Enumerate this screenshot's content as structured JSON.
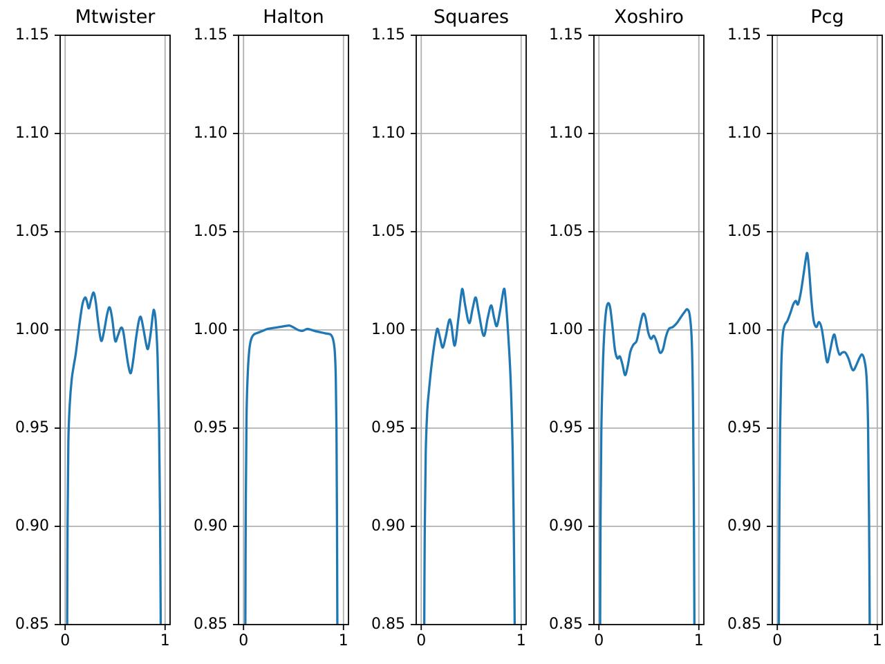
{
  "figure": {
    "background": "#ffffff",
    "line_color": "#1f77b4",
    "grid_color": "#b0b0b0",
    "spine_color": "#000000",
    "tick_color": "#000000",
    "text_color": "#000000"
  },
  "chart_data": [
    {
      "type": "line",
      "title": "Mtwister",
      "xlabel": "",
      "ylabel": "",
      "xlim": [
        -0.05,
        1.05
      ],
      "ylim": [
        0.85,
        1.15
      ],
      "grid": true,
      "legend": false,
      "xticks": {
        "values": [
          0,
          1
        ],
        "labels": [
          "0",
          "1"
        ]
      },
      "yticks": {
        "values": [
          0.85,
          0.9,
          0.95,
          1.0,
          1.05,
          1.1,
          1.15
        ],
        "labels": [
          "0.85",
          "0.90",
          "0.95",
          "1.00",
          "1.05",
          "1.10",
          "1.15"
        ]
      },
      "series": [
        {
          "color": "#1f77b4",
          "points": [
            [
              0.02,
              0.845
            ],
            [
              0.024,
              0.9
            ],
            [
              0.032,
              0.943
            ],
            [
              0.046,
              0.962
            ],
            [
              0.065,
              0.9745
            ],
            [
              0.085,
              0.9815
            ],
            [
              0.105,
              0.9875
            ],
            [
              0.125,
              0.9955
            ],
            [
              0.15,
              1.0055
            ],
            [
              0.175,
              1.0135
            ],
            [
              0.2,
              1.0165
            ],
            [
              0.218,
              1.0145
            ],
            [
              0.237,
              1.011
            ],
            [
              0.26,
              1.0155
            ],
            [
              0.285,
              1.019
            ],
            [
              0.307,
              1.014
            ],
            [
              0.33,
              1.004
            ],
            [
              0.36,
              0.9945
            ],
            [
              0.388,
              0.999
            ],
            [
              0.42,
              1.008
            ],
            [
              0.445,
              1.0115
            ],
            [
              0.47,
              1.006
            ],
            [
              0.5,
              0.9945
            ],
            [
              0.527,
              0.997
            ],
            [
              0.557,
              1.001
            ],
            [
              0.58,
              0.9995
            ],
            [
              0.605,
              0.991
            ],
            [
              0.632,
              0.982
            ],
            [
              0.657,
              0.978
            ],
            [
              0.682,
              0.985
            ],
            [
              0.71,
              0.996
            ],
            [
              0.737,
              1.0045
            ],
            [
              0.758,
              1.0065
            ],
            [
              0.785,
              1.0
            ],
            [
              0.812,
              0.9925
            ],
            [
              0.83,
              0.9905
            ],
            [
              0.855,
              0.998
            ],
            [
              0.878,
              1.008
            ],
            [
              0.89,
              1.01
            ],
            [
              0.907,
              1.004
            ],
            [
              0.925,
              0.986
            ],
            [
              0.94,
              0.95
            ],
            [
              0.95,
              0.9
            ],
            [
              0.957,
              0.845
            ]
          ]
        }
      ]
    },
    {
      "type": "line",
      "title": "Halton",
      "xlabel": "",
      "ylabel": "",
      "xlim": [
        -0.05,
        1.05
      ],
      "ylim": [
        0.85,
        1.15
      ],
      "grid": true,
      "legend": false,
      "xticks": {
        "values": [
          0,
          1
        ],
        "labels": [
          "0",
          "1"
        ]
      },
      "yticks": {
        "values": [
          0.85,
          0.9,
          0.95,
          1.0,
          1.05,
          1.1,
          1.15
        ],
        "labels": [
          "0.85",
          "0.90",
          "0.95",
          "1.00",
          "1.05",
          "1.10",
          "1.15"
        ]
      },
      "series": [
        {
          "color": "#1f77b4",
          "points": [
            [
              0.018,
              0.845
            ],
            [
              0.022,
              0.905
            ],
            [
              0.03,
              0.956
            ],
            [
              0.042,
              0.9775
            ],
            [
              0.057,
              0.9895
            ],
            [
              0.075,
              0.995
            ],
            [
              0.1,
              0.9975
            ],
            [
              0.14,
              0.9985
            ],
            [
              0.19,
              0.9995
            ],
            [
              0.24,
              1.0005
            ],
            [
              0.3,
              1.001
            ],
            [
              0.36,
              1.0015
            ],
            [
              0.42,
              1.002
            ],
            [
              0.46,
              1.0022
            ],
            [
              0.5,
              1.0013
            ],
            [
              0.545,
              1.0
            ],
            [
              0.59,
              0.9995
            ],
            [
              0.635,
              1.0005
            ],
            [
              0.68,
              1.0
            ],
            [
              0.725,
              0.9993
            ],
            [
              0.77,
              0.9988
            ],
            [
              0.815,
              0.9983
            ],
            [
              0.85,
              0.998
            ],
            [
              0.875,
              0.9975
            ],
            [
              0.897,
              0.995
            ],
            [
              0.913,
              0.989
            ],
            [
              0.923,
              0.976
            ],
            [
              0.93,
              0.95
            ],
            [
              0.935,
              0.905
            ],
            [
              0.939,
              0.845
            ]
          ]
        }
      ]
    },
    {
      "type": "line",
      "title": "Squares",
      "xlabel": "",
      "ylabel": "",
      "xlim": [
        -0.05,
        1.05
      ],
      "ylim": [
        0.85,
        1.15
      ],
      "grid": true,
      "legend": false,
      "xticks": {
        "values": [
          0,
          1
        ],
        "labels": [
          "0",
          "1"
        ]
      },
      "yticks": {
        "values": [
          0.85,
          0.9,
          0.95,
          1.0,
          1.05,
          1.1,
          1.15
        ],
        "labels": [
          "0.85",
          "0.90",
          "0.95",
          "1.00",
          "1.05",
          "1.10",
          "1.15"
        ]
      },
      "series": [
        {
          "color": "#1f77b4",
          "points": [
            [
              0.03,
              0.845
            ],
            [
              0.035,
              0.895
            ],
            [
              0.045,
              0.937
            ],
            [
              0.06,
              0.9585
            ],
            [
              0.08,
              0.9705
            ],
            [
              0.1,
              0.9805
            ],
            [
              0.125,
              0.9905
            ],
            [
              0.15,
              0.9985
            ],
            [
              0.165,
              1.0005
            ],
            [
              0.19,
              0.9955
            ],
            [
              0.215,
              0.991
            ],
            [
              0.245,
              0.9965
            ],
            [
              0.28,
              1.005
            ],
            [
              0.302,
              1.0025
            ],
            [
              0.335,
              0.992
            ],
            [
              0.37,
              1.005
            ],
            [
              0.4,
              1.018
            ],
            [
              0.415,
              1.0205
            ],
            [
              0.44,
              1.0125
            ],
            [
              0.48,
              1.0035
            ],
            [
              0.515,
              1.011
            ],
            [
              0.545,
              1.0165
            ],
            [
              0.575,
              1.009
            ],
            [
              0.625,
              0.997
            ],
            [
              0.665,
              1.006
            ],
            [
              0.7,
              1.0125
            ],
            [
              0.73,
              1.006
            ],
            [
              0.757,
              1.002
            ],
            [
              0.79,
              1.01
            ],
            [
              0.825,
              1.0205
            ],
            [
              0.842,
              1.017
            ],
            [
              0.87,
              0.998
            ],
            [
              0.895,
              0.974
            ],
            [
              0.915,
              0.938
            ],
            [
              0.928,
              0.89
            ],
            [
              0.936,
              0.845
            ]
          ]
        }
      ]
    },
    {
      "type": "line",
      "title": "Xoshiro",
      "xlabel": "",
      "ylabel": "",
      "xlim": [
        -0.05,
        1.05
      ],
      "ylim": [
        0.85,
        1.15
      ],
      "grid": true,
      "legend": false,
      "xticks": {
        "values": [
          0,
          1
        ],
        "labels": [
          "0",
          "1"
        ]
      },
      "yticks": {
        "values": [
          0.85,
          0.9,
          0.95,
          1.0,
          1.05,
          1.1,
          1.15
        ],
        "labels": [
          "0.85",
          "0.90",
          "0.95",
          "1.00",
          "1.05",
          "1.10",
          "1.15"
        ]
      },
      "series": [
        {
          "color": "#1f77b4",
          "points": [
            [
              0.012,
              0.845
            ],
            [
              0.016,
              0.9
            ],
            [
              0.024,
              0.948
            ],
            [
              0.036,
              0.975
            ],
            [
              0.05,
              0.995
            ],
            [
              0.07,
              1.009
            ],
            [
              0.09,
              1.0135
            ],
            [
              0.112,
              1.0115
            ],
            [
              0.135,
              1.002
            ],
            [
              0.16,
              0.99
            ],
            [
              0.185,
              0.9855
            ],
            [
              0.21,
              0.9865
            ],
            [
              0.235,
              0.9825
            ],
            [
              0.262,
              0.977
            ],
            [
              0.288,
              0.9815
            ],
            [
              0.315,
              0.989
            ],
            [
              0.345,
              0.9925
            ],
            [
              0.378,
              0.9945
            ],
            [
              0.41,
              1.002
            ],
            [
              0.44,
              1.008
            ],
            [
              0.465,
              1.0065
            ],
            [
              0.492,
              0.999
            ],
            [
              0.52,
              0.9955
            ],
            [
              0.55,
              0.997
            ],
            [
              0.58,
              0.9935
            ],
            [
              0.61,
              0.9885
            ],
            [
              0.64,
              0.99
            ],
            [
              0.67,
              0.9965
            ],
            [
              0.7,
              1.0005
            ],
            [
              0.74,
              1.0015
            ],
            [
              0.78,
              1.0035
            ],
            [
              0.82,
              1.0065
            ],
            [
              0.855,
              1.009
            ],
            [
              0.885,
              1.0105
            ],
            [
              0.91,
              1.007
            ],
            [
              0.93,
              0.993
            ],
            [
              0.943,
              0.955
            ],
            [
              0.951,
              0.9
            ],
            [
              0.956,
              0.845
            ]
          ]
        }
      ]
    },
    {
      "type": "line",
      "title": "Pcg",
      "xlabel": "",
      "ylabel": "",
      "xlim": [
        -0.05,
        1.05
      ],
      "ylim": [
        0.85,
        1.15
      ],
      "grid": true,
      "legend": false,
      "xticks": {
        "values": [
          0,
          1
        ],
        "labels": [
          "0",
          "1"
        ]
      },
      "yticks": {
        "values": [
          0.85,
          0.9,
          0.95,
          1.0,
          1.05,
          1.1,
          1.15
        ],
        "labels": [
          "0.85",
          "0.90",
          "0.95",
          "1.00",
          "1.05",
          "1.10",
          "1.15"
        ]
      },
      "series": [
        {
          "color": "#1f77b4",
          "points": [
            [
              0.015,
              0.845
            ],
            [
              0.02,
              0.9
            ],
            [
              0.028,
              0.95
            ],
            [
              0.04,
              0.982
            ],
            [
              0.055,
              0.9975
            ],
            [
              0.075,
              1.0025
            ],
            [
              0.1,
              1.0045
            ],
            [
              0.13,
              1.0085
            ],
            [
              0.16,
              1.013
            ],
            [
              0.185,
              1.0148
            ],
            [
              0.207,
              1.013
            ],
            [
              0.235,
              1.019
            ],
            [
              0.262,
              1.028
            ],
            [
              0.285,
              1.036
            ],
            [
              0.3,
              1.039
            ],
            [
              0.318,
              1.031
            ],
            [
              0.34,
              1.016
            ],
            [
              0.363,
              1.005
            ],
            [
              0.39,
              1.0015
            ],
            [
              0.418,
              1.004
            ],
            [
              0.445,
              1.0005
            ],
            [
              0.475,
              0.9905
            ],
            [
              0.5,
              0.9835
            ],
            [
              0.525,
              0.9885
            ],
            [
              0.553,
              0.9955
            ],
            [
              0.573,
              0.9975
            ],
            [
              0.598,
              0.9915
            ],
            [
              0.622,
              0.9875
            ],
            [
              0.65,
              0.9885
            ],
            [
              0.68,
              0.9885
            ],
            [
              0.712,
              0.9855
            ],
            [
              0.742,
              0.9808
            ],
            [
              0.763,
              0.9795
            ],
            [
              0.79,
              0.982
            ],
            [
              0.82,
              0.9855
            ],
            [
              0.848,
              0.9875
            ],
            [
              0.872,
              0.9845
            ],
            [
              0.893,
              0.976
            ],
            [
              0.908,
              0.952
            ],
            [
              0.918,
              0.905
            ],
            [
              0.925,
              0.845
            ]
          ]
        }
      ]
    }
  ]
}
